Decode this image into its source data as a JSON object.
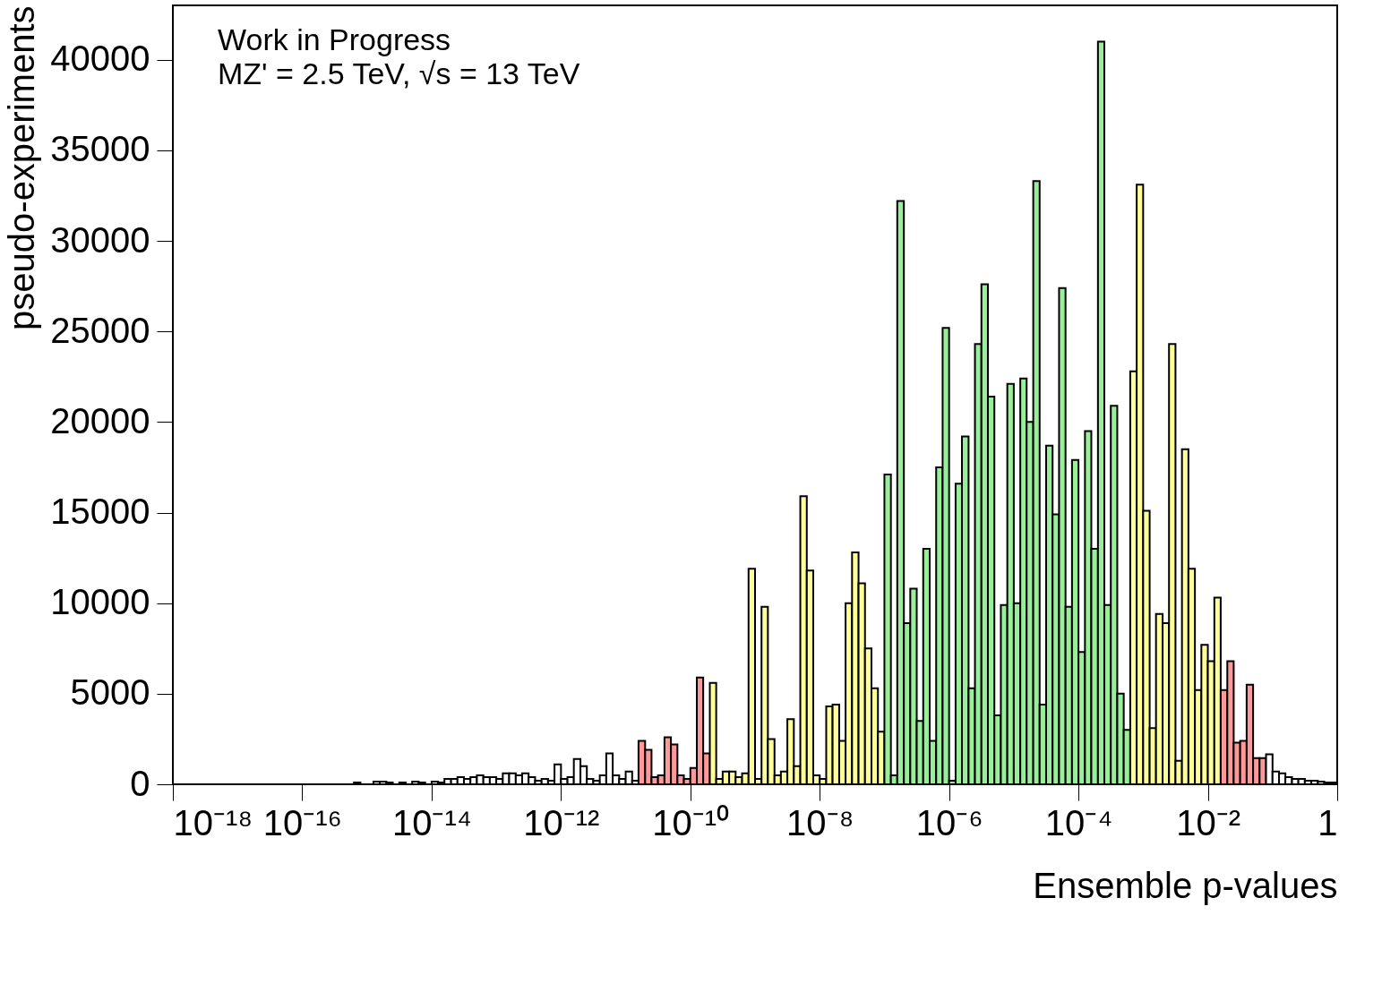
{
  "chart_data": {
    "type": "histogram",
    "xlabel": "Ensemble p-values",
    "ylabel": "pseudo-experiments",
    "annotations": [
      "Work in Progress",
      "MZ' = 2.5 TeV, √s = 13 TeV"
    ],
    "log": "x",
    "grid": false,
    "xlim": [
      1e-18,
      1
    ],
    "ylim": [
      0,
      43000
    ],
    "xticks": [
      {
        "value": 1e-18,
        "label": "10⁻¹⁸"
      },
      {
        "value": 1e-16,
        "label": "10⁻¹⁶"
      },
      {
        "value": 1e-14,
        "label": "10⁻¹⁴"
      },
      {
        "value": 1e-12,
        "label": "10⁻¹²"
      },
      {
        "value": 1e-10,
        "label": "10⁻¹⁰"
      },
      {
        "value": 1e-08,
        "label": "10⁻⁸"
      },
      {
        "value": 1e-06,
        "label": "10⁻⁶"
      },
      {
        "value": 0.0001,
        "label": "10⁻⁴"
      },
      {
        "value": 0.01,
        "label": "10⁻²"
      },
      1
    ],
    "yticks": [
      0,
      5000,
      10000,
      15000,
      20000,
      25000,
      30000,
      35000,
      40000
    ],
    "bins": [
      1e-18,
      1.26e-18,
      1.58e-18,
      2e-18,
      2.51e-18,
      3.16e-18,
      3.98e-18,
      5.01e-18,
      6.31e-18,
      7.94e-18,
      1e-17,
      1.26e-17,
      1.58e-17,
      2e-17,
      2.51e-17,
      3.16e-17,
      3.98e-17,
      5.01e-17,
      6.31e-17,
      7.94e-17,
      1e-16,
      1.26e-16,
      1.58e-16,
      2e-16,
      2.51e-16,
      3.16e-16,
      3.98e-16,
      5.01e-16,
      6.31e-16,
      7.94e-16,
      1e-15,
      1.26e-15,
      1.58e-15,
      2e-15,
      2.51e-15,
      3.16e-15,
      3.98e-15,
      5.01e-15,
      6.31e-15,
      7.94e-15,
      1e-14,
      1.26e-14,
      1.58e-14,
      2e-14,
      2.51e-14,
      3.16e-14,
      3.98e-14,
      5.01e-14,
      6.31e-14,
      7.94e-14,
      1e-13,
      1.26e-13,
      1.58e-13,
      2e-13,
      2.51e-13,
      3.16e-13,
      3.98e-13,
      5.01e-13,
      6.31e-13,
      7.94e-13,
      1e-12,
      1.26e-12,
      1.58e-12,
      2e-12,
      2.51e-12,
      3.16e-12,
      3.98e-12,
      5.01e-12,
      6.31e-12,
      7.94e-12,
      1e-11,
      1.26e-11,
      1.58e-11,
      2e-11,
      2.51e-11,
      3.16e-11,
      3.98e-11,
      5.01e-11,
      6.31e-11,
      7.94e-11,
      1e-10,
      1.26e-10,
      1.58e-10,
      2e-10,
      2.51e-10,
      3.16e-10,
      3.98e-10,
      5.01e-10,
      6.31e-10,
      7.94e-10,
      1e-09,
      1.26e-09,
      1.58e-09,
      2e-09,
      2.51e-09,
      3.16e-09,
      3.98e-09,
      5.01e-09,
      6.31e-09,
      7.94e-09,
      1e-08,
      1.26e-08,
      1.58e-08,
      2e-08,
      2.51e-08,
      3.16e-08,
      3.98e-08,
      5.01e-08,
      6.31e-08,
      7.94e-08,
      1e-07,
      1.26e-07,
      1.58e-07,
      2e-07,
      2.51e-07,
      3.16e-07,
      3.98e-07,
      5.01e-07,
      6.31e-07,
      7.94e-07,
      1e-06,
      1.26e-06,
      1.58e-06,
      2e-06,
      2.51e-06,
      3.16e-06,
      3.98e-06,
      5.01e-06,
      6.31e-06,
      7.94e-06,
      1e-05,
      1.26e-05,
      1.58e-05,
      2e-05,
      2.51e-05,
      3.16e-05,
      3.98e-05,
      5.01e-05,
      6.31e-05,
      7.94e-05,
      0.0001,
      0.000126,
      0.000158,
      0.0002,
      0.000251,
      0.000316,
      0.000398,
      0.000501,
      0.000631,
      0.000794,
      0.001,
      0.00126,
      0.00158,
      0.002,
      0.00251,
      0.00316,
      0.00398,
      0.00501,
      0.00631,
      0.00794,
      0.01,
      0.0126,
      0.0158,
      0.02,
      0.0251,
      0.0316,
      0.0398,
      0.0501,
      0.0631,
      0.0794,
      0.1,
      0.126,
      0.158,
      0.2,
      0.251,
      0.316,
      0.398,
      0.501,
      0.631,
      0.794,
      1
    ],
    "values": [
      null,
      null,
      null,
      null,
      null,
      null,
      null,
      null,
      null,
      null,
      null,
      null,
      null,
      null,
      null,
      null,
      null,
      null,
      null,
      null,
      null,
      null,
      null,
      null,
      null,
      null,
      null,
      null,
      100,
      null,
      null,
      150,
      150,
      100,
      null,
      100,
      null,
      150,
      100,
      null,
      150,
      100,
      300,
      300,
      400,
      300,
      400,
      500,
      400,
      400,
      300,
      600,
      600,
      500,
      600,
      400,
      200,
      300,
      200,
      1100,
      300,
      400,
      1400,
      1000,
      300,
      200,
      500,
      1700,
      500,
      300,
      700,
      200,
      2400,
      1900,
      400,
      500,
      2600,
      2200,
      500,
      300,
      900,
      5900,
      1700,
      5600,
      300,
      700,
      700,
      400,
      600,
      11900,
      300,
      9800,
      2500,
      500,
      700,
      3600,
      1000,
      15900,
      11800,
      500,
      300,
      4300,
      4400,
      2400,
      10000,
      12800,
      11100,
      7500,
      5300,
      2900,
      17100,
      500,
      32200,
      8900,
      10800,
      3500,
      13000,
      2400,
      17500,
      25200,
      200,
      16600,
      19200,
      5300,
      24300,
      27600,
      21400,
      3800,
      9900,
      22100,
      10000,
      22400,
      20000,
      33300,
      4400,
      18700,
      14900,
      27400,
      9800,
      17900,
      7300,
      19500,
      13000,
      41000,
      9900,
      20900,
      5000,
      3000,
      22800,
      33100,
      15100,
      3100,
      9400,
      8900,
      24300,
      1300,
      18500,
      11900,
      5200,
      7700,
      6800,
      10300,
      5200,
      6800,
      2300,
      2400,
      5500,
      1450,
      1450,
      1650,
      700,
      600,
      400,
      300,
      300,
      200,
      200,
      150,
      100,
      100
    ],
    "colors": [
      "#ffffff",
      "#ffffff",
      "#ffffff",
      "#ffffff",
      "#ffffff",
      "#ffffff",
      "#ffffff",
      "#ffffff",
      "#ffffff",
      "#ffffff",
      "#ffffff",
      "#ffffff",
      "#ffffff",
      "#ffffff",
      "#ffffff",
      "#ffffff",
      "#ffffff",
      "#ffffff",
      "#ffffff",
      "#ffffff",
      "#ffffff",
      "#ffffff",
      "#ffffff",
      "#ffffff",
      "#ffffff",
      "#ffffff",
      "#ffffff",
      "#ffffff",
      "#ffffff",
      "#ffffff",
      "#ffffff",
      "#ffffff",
      "#ffffff",
      "#ffffff",
      "#ffffff",
      "#ffffff",
      "#ffffff",
      "#ffffff",
      "#ffffff",
      "#ffffff",
      "#ffffff",
      "#ffffff",
      "#ffffff",
      "#ffffff",
      "#ffffff",
      "#ffffff",
      "#ffffff",
      "#ffffff",
      "#ffffff",
      "#ffffff",
      "#ffffff",
      "#ffffff",
      "#ffffff",
      "#ffffff",
      "#ffffff",
      "#ffffff",
      "#ffffff",
      "#ffffff",
      "#ffffff",
      "#ffffff",
      "#ffffff",
      "#ffffff",
      "#ffffff",
      "#ffffff",
      "#ffffff",
      "#ffffff",
      "#ffffff",
      "#ffffff",
      "#ffffff",
      "#ffffff",
      "#ffffff",
      "#ffffff",
      "#ff9999",
      "#ff9999",
      "#ff9999",
      "#ff9999",
      "#ff9999",
      "#ff9999",
      "#ff9999",
      "#ff9999",
      "#ff9999",
      "#ff9999",
      "#ff9999",
      "#ffff99",
      "#ffff99",
      "#ffff99",
      "#ffff99",
      "#ffff99",
      "#ffff99",
      "#ffff99",
      "#ffff99",
      "#ffff99",
      "#ffff99",
      "#ffff99",
      "#ffff99",
      "#ffff99",
      "#ffff99",
      "#ffff99",
      "#ffff99",
      "#ffff99",
      "#ffff99",
      "#ffff99",
      "#ffff99",
      "#ffff99",
      "#ffff99",
      "#ffff99",
      "#ffff99",
      "#ffff99",
      "#ffff99",
      "#ffff99",
      "#99ee99",
      "#99ee99",
      "#99ee99",
      "#99ee99",
      "#99ee99",
      "#99ee99",
      "#99ee99",
      "#99ee99",
      "#99ee99",
      "#99ee99",
      "#99ee99",
      "#99ee99",
      "#99ee99",
      "#99ee99",
      "#99ee99",
      "#99ee99",
      "#99ee99",
      "#99ee99",
      "#99ee99",
      "#99ee99",
      "#99ee99",
      "#99ee99",
      "#99ee99",
      "#99ee99",
      "#99ee99",
      "#99ee99",
      "#99ee99",
      "#99ee99",
      "#99ee99",
      "#99ee99",
      "#99ee99",
      "#99ee99",
      "#99ee99",
      "#99ee99",
      "#99ee99",
      "#99ee99",
      "#99ee99",
      "#99ee99",
      "#ffff99",
      "#ffff99",
      "#ffff99",
      "#ffff99",
      "#ffff99",
      "#ffff99",
      "#ffff99",
      "#ffff99",
      "#ffff99",
      "#ffff99",
      "#ffff99",
      "#ffff99",
      "#ffff99",
      "#ffff99",
      "#ff9999",
      "#ff9999",
      "#ff9999",
      "#ff9999",
      "#ff9999",
      "#ff9999",
      "#ff9999",
      "#ffffff",
      "#ffffff",
      "#ffffff",
      "#ffffff",
      "#ffffff",
      "#ffffff",
      "#ffffff",
      "#ffffff",
      "#ffffff",
      "#ffffff",
      "#ffffff"
    ]
  }
}
